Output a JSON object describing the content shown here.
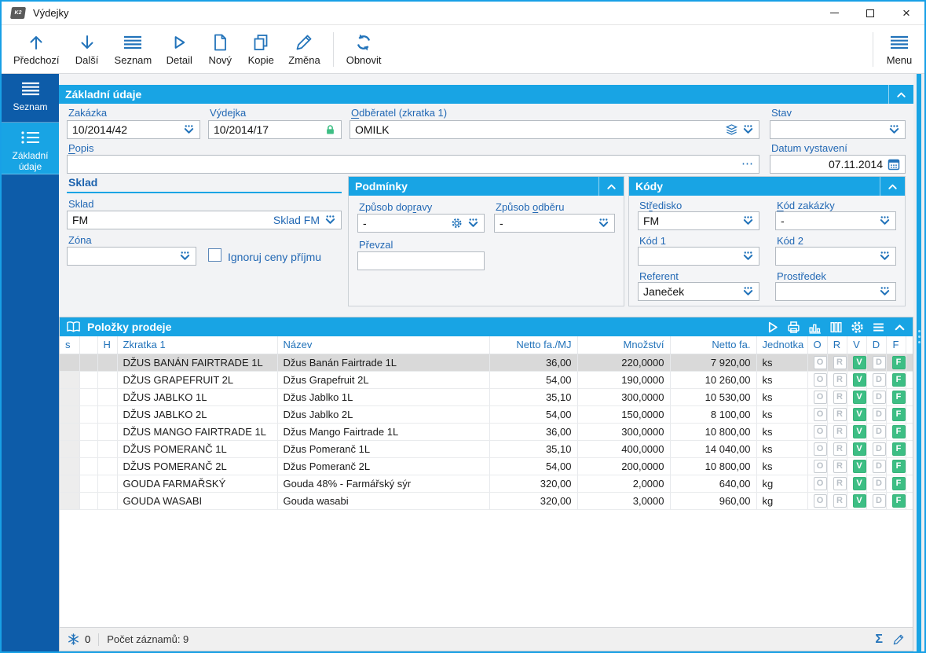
{
  "window": {
    "title": "Výdejky",
    "app_icon_text": "K2",
    "controls": [
      "minimize",
      "maximize",
      "close"
    ]
  },
  "toolbar": {
    "buttons": [
      {
        "label": "Předchozí",
        "icon": "arrow-up-icon"
      },
      {
        "label": "Další",
        "icon": "arrow-down-icon"
      },
      {
        "label": "Seznam",
        "icon": "list-icon"
      },
      {
        "label": "Detail",
        "icon": "play-icon"
      },
      {
        "label": "Nový",
        "icon": "new-document-icon"
      },
      {
        "label": "Kopie",
        "icon": "copy-icon"
      },
      {
        "label": "Změna",
        "icon": "pencil-icon"
      },
      {
        "label": "Obnovit",
        "icon": "refresh-icon"
      }
    ],
    "menu": {
      "label": "Menu",
      "icon": "menu-icon"
    }
  },
  "sidebar": {
    "items": [
      {
        "label": "Seznam",
        "icon": "list-icon",
        "active": false
      },
      {
        "label": "Základní údaje",
        "icon": "detail-list-icon",
        "active": true
      }
    ]
  },
  "form": {
    "section_title": "Základní údaje",
    "zakazka": {
      "label": "Zakázka",
      "value": "10/2014/42"
    },
    "vydejka": {
      "label": "Výdejka",
      "value": "10/2014/17"
    },
    "odberatel": {
      "label": "Odběratel (zkratka 1)",
      "hotkey": {
        "char": "O",
        "occ": 1
      },
      "value": "OMILK"
    },
    "stav": {
      "label": "Stav",
      "value": ""
    },
    "popis": {
      "label": "Popis",
      "hotkey": {
        "char": "P",
        "occ": 1
      },
      "value": ""
    },
    "datum": {
      "label": "Datum vystavení",
      "value": "07.11.2014"
    },
    "sklad_group": {
      "title": "Sklad",
      "sklad": {
        "label": "Sklad",
        "value": "FM",
        "value_right": "Sklad FM"
      },
      "zona": {
        "label": "Zóna",
        "value": ""
      },
      "checkbox": {
        "label": "Ignoruj ceny příjmu",
        "checked": false
      }
    },
    "podminky": {
      "title": "Podmínky",
      "zpusob_dopravy": {
        "label": "Způsob dopravy",
        "hotkey": {
          "char": "r",
          "occ": 1
        },
        "value": "-"
      },
      "zpusob_odberu": {
        "label": "Způsob odběru",
        "hotkey": {
          "char": "o",
          "occ": 2
        },
        "value": "-"
      },
      "prevzal": {
        "label": "Převzal",
        "value": ""
      }
    },
    "kody": {
      "title": "Kódy",
      "stredisko": {
        "label": "Středisko",
        "hotkey": {
          "char": "ř",
          "occ": 1
        },
        "value": "FM"
      },
      "kod_zakazky": {
        "label": "Kód zakázky",
        "hotkey": {
          "char": "K",
          "occ": 1
        },
        "value": "-"
      },
      "kod1": {
        "label": "Kód 1",
        "value": ""
      },
      "kod2": {
        "label": "Kód 2",
        "value": ""
      },
      "referent": {
        "label": "Referent",
        "value": "Janeček"
      },
      "prostredek": {
        "label": "Prostředek",
        "value": ""
      }
    }
  },
  "items_table": {
    "title": "Položky prodeje",
    "header_icons": [
      "play-icon",
      "printer-icon",
      "chart-icon",
      "columns-icon",
      "gear-icon",
      "menu-icon",
      "collapse-icon"
    ],
    "columns": [
      "s",
      "",
      "H",
      "Zkratka 1",
      "Název",
      "Netto fa./MJ",
      "Množství",
      "Netto fa.",
      "Jednotka",
      "O",
      "R",
      "V",
      "D",
      "F"
    ],
    "selected_row": 0,
    "flags": {
      "letters": [
        "O",
        "R",
        "V",
        "D",
        "F"
      ],
      "active": [
        "V",
        "F"
      ]
    },
    "rows": [
      {
        "zkratka": "DŽUS BANÁN FAIRTRADE 1L",
        "nazev": "Džus Banán Fairtrade 1L",
        "netto_mj": "36,00",
        "mnozstvi": "220,0000",
        "netto": "7 920,00",
        "jednotka": "ks"
      },
      {
        "zkratka": "DŽUS GRAPEFRUIT 2L",
        "nazev": "Džus Grapefruit 2L",
        "netto_mj": "54,00",
        "mnozstvi": "190,0000",
        "netto": "10 260,00",
        "jednotka": "ks"
      },
      {
        "zkratka": "DŽUS JABLKO 1L",
        "nazev": "Džus Jablko 1L",
        "netto_mj": "35,10",
        "mnozstvi": "300,0000",
        "netto": "10 530,00",
        "jednotka": "ks"
      },
      {
        "zkratka": "DŽUS JABLKO 2L",
        "nazev": "Džus Jablko 2L",
        "netto_mj": "54,00",
        "mnozstvi": "150,0000",
        "netto": "8 100,00",
        "jednotka": "ks"
      },
      {
        "zkratka": "DŽUS MANGO FAIRTRADE 1L",
        "nazev": "Džus Mango Fairtrade 1L",
        "netto_mj": "36,00",
        "mnozstvi": "300,0000",
        "netto": "10 800,00",
        "jednotka": "ks"
      },
      {
        "zkratka": "DŽUS POMERANČ 1L",
        "nazev": "Džus Pomeranč 1L",
        "netto_mj": "35,10",
        "mnozstvi": "400,0000",
        "netto": "14 040,00",
        "jednotka": "ks"
      },
      {
        "zkratka": "DŽUS POMERANČ 2L",
        "nazev": "Džus Pomeranč 2L",
        "netto_mj": "54,00",
        "mnozstvi": "200,0000",
        "netto": "10 800,00",
        "jednotka": "ks"
      },
      {
        "zkratka": "GOUDA FARMAŘSKÝ",
        "nazev": "Gouda 48% - Farmářský sýr",
        "netto_mj": "320,00",
        "mnozstvi": "2,0000",
        "netto": "640,00",
        "jednotka": "kg"
      },
      {
        "zkratka": "GOUDA WASABI",
        "nazev": "Gouda wasabi",
        "netto_mj": "320,00",
        "mnozstvi": "3,0000",
        "netto": "960,00",
        "jednotka": "kg"
      }
    ]
  },
  "status_bar": {
    "frozen_count": "0",
    "records_text": "Počet záznamů: 9",
    "icons": [
      "snowflake-icon",
      "sum-icon",
      "edit-icon"
    ]
  },
  "colors": {
    "accent": "#18a4e4",
    "sidebar_blue": "#0d5ca9",
    "label_blue": "#2268b4",
    "icon_blue": "#2273ba",
    "green": "#3dbe84",
    "selected_row": "#d9d9d9"
  }
}
